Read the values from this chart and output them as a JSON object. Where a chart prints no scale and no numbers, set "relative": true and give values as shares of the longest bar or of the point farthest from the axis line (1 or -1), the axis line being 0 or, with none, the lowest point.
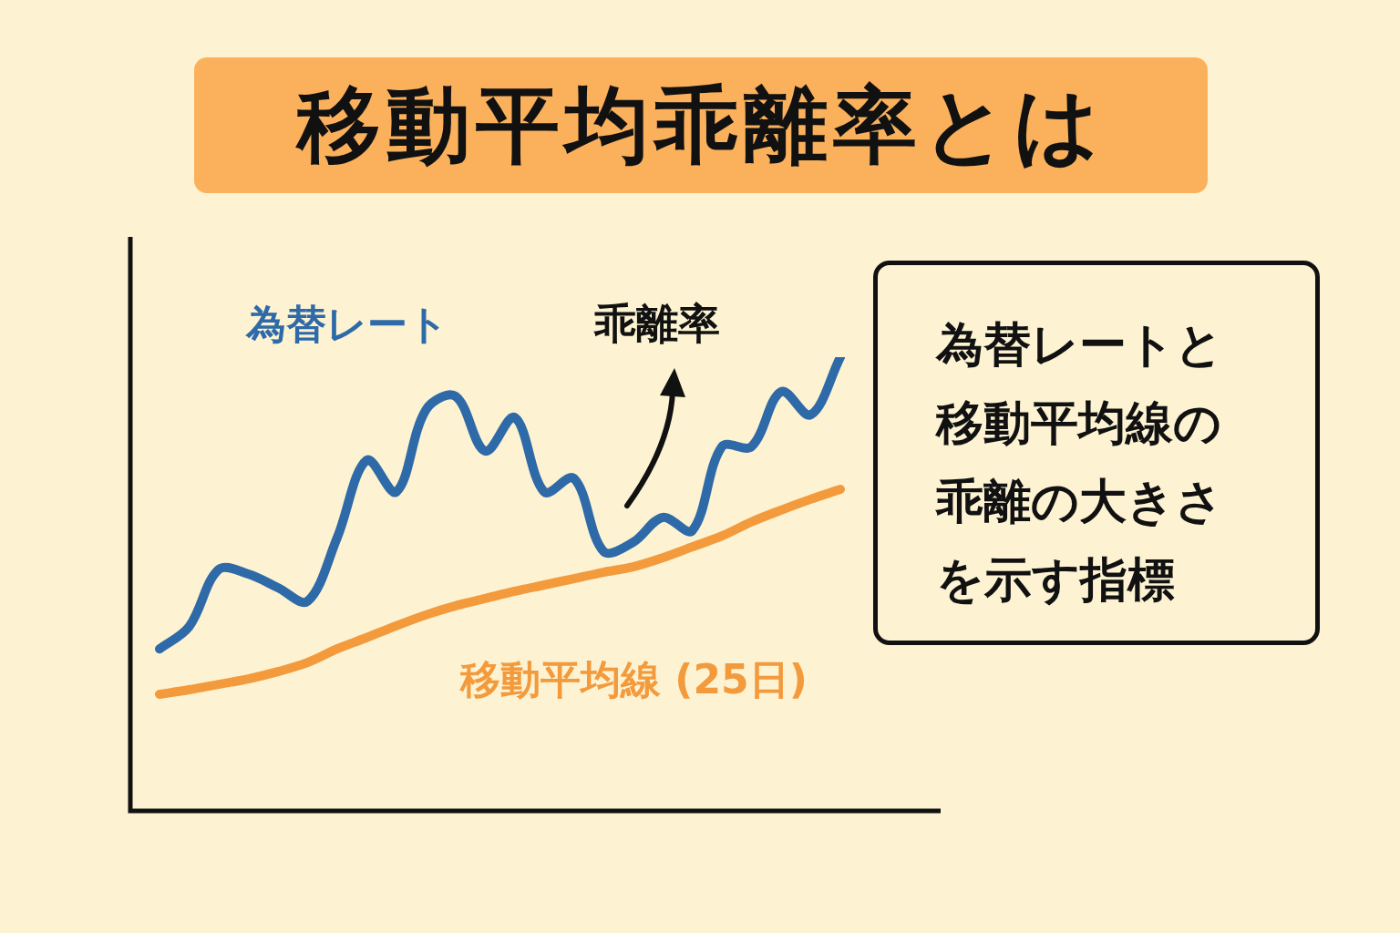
{
  "chart_data": {
    "type": "line",
    "title": "移動平均乖離率とは",
    "relative": true,
    "legend": false,
    "marker": "none",
    "line_style": "solid",
    "categories": [
      null,
      null,
      null,
      null,
      null,
      null,
      null,
      null,
      null,
      null,
      null,
      null,
      null,
      null,
      null,
      null,
      null,
      null,
      null,
      null,
      null,
      null,
      null,
      null
    ],
    "series": [
      {
        "name": "為替レート",
        "color": "#2f6aa8",
        "values": [
          0.357,
          0.406,
          0.532,
          0.522,
          0.492,
          0.462,
          0.602,
          0.773,
          0.703,
          0.884,
          0.914,
          0.793,
          0.867,
          0.703,
          0.733,
          0.572,
          0.592,
          0.647,
          0.618,
          0.803,
          0.803,
          0.924,
          0.873,
          1
        ]
      },
      {
        "name": "移動平均線 (25日)",
        "color": "#f39a3c",
        "values": [
          0.257,
          0.267,
          0.279,
          0.291,
          0.307,
          0.327,
          0.357,
          0.382,
          0.408,
          0.432,
          0.452,
          0.468,
          0.484,
          0.498,
          0.512,
          0.526,
          0.538,
          0.558,
          0.582,
          0.606,
          0.637,
          0.663,
          0.687,
          0.709
        ]
      }
    ],
    "annotations": [
      "乖離率",
      "為替レートと移動平均線の乖離の大きさを示す指標"
    ]
  }
}
